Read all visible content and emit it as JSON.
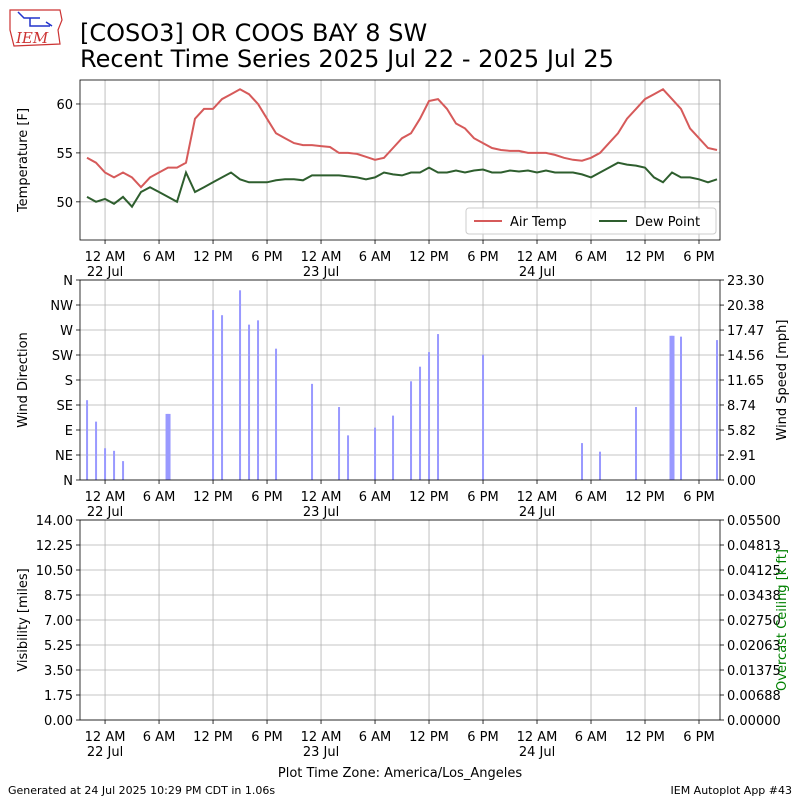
{
  "logo_text": "IEM",
  "header": {
    "title": "[COSO3] OR COOS BAY 8 SW",
    "subtitle": "Recent Time Series 2025 Jul 22 - 2025 Jul 25"
  },
  "footer": {
    "left": "Generated at 24 Jul 2025 10:29 PM CDT in 1.06s",
    "right": "IEM Autoplot App #43"
  },
  "chart_data": [
    {
      "type": "line",
      "ylabel": "Temperature [F]",
      "grid": true,
      "legend": "lower right",
      "xlim": [
        "2025-07-21T21:13",
        "2025-07-24T20:20"
      ],
      "xticks": [
        {
          "value": "2025-07-22T00:00",
          "label": "12 AM\n22 Jul"
        },
        {
          "value": "2025-07-22T06:00",
          "label": "6 AM"
        },
        {
          "value": "2025-07-22T12:00",
          "label": "12 PM"
        },
        {
          "value": "2025-07-22T18:00",
          "label": "6 PM"
        },
        {
          "value": "2025-07-23T00:00",
          "label": "12 AM\n23 Jul"
        },
        {
          "value": "2025-07-23T06:00",
          "label": "6 AM"
        },
        {
          "value": "2025-07-23T12:00",
          "label": "12 PM"
        },
        {
          "value": "2025-07-23T18:00",
          "label": "6 PM"
        },
        {
          "value": "2025-07-24T00:00",
          "label": "12 AM\n24 Jul"
        },
        {
          "value": "2025-07-24T06:00",
          "label": "6 AM"
        },
        {
          "value": "2025-07-24T12:00",
          "label": "12 PM"
        },
        {
          "value": "2025-07-24T18:00",
          "label": "6 PM"
        }
      ],
      "ylim": [
        46.1,
        62.45
      ],
      "yticks": [
        50,
        55,
        60
      ],
      "x": [
        "2025-07-21T22:00",
        "2025-07-21T23:00",
        "2025-07-22T00:00",
        "2025-07-22T01:00",
        "2025-07-22T02:00",
        "2025-07-22T03:00",
        "2025-07-22T04:00",
        "2025-07-22T05:00",
        "2025-07-22T06:00",
        "2025-07-22T07:00",
        "2025-07-22T08:00",
        "2025-07-22T09:00",
        "2025-07-22T10:00",
        "2025-07-22T11:00",
        "2025-07-22T12:00",
        "2025-07-22T13:00",
        "2025-07-22T14:00",
        "2025-07-22T15:00",
        "2025-07-22T16:00",
        "2025-07-22T17:00",
        "2025-07-22T18:00",
        "2025-07-22T19:00",
        "2025-07-22T20:00",
        "2025-07-22T21:00",
        "2025-07-22T22:00",
        "2025-07-22T23:00",
        "2025-07-23T00:00",
        "2025-07-23T01:00",
        "2025-07-23T02:00",
        "2025-07-23T03:00",
        "2025-07-23T04:00",
        "2025-07-23T05:00",
        "2025-07-23T06:00",
        "2025-07-23T07:00",
        "2025-07-23T08:00",
        "2025-07-23T09:00",
        "2025-07-23T10:00",
        "2025-07-23T11:00",
        "2025-07-23T12:00",
        "2025-07-23T13:00",
        "2025-07-23T14:00",
        "2025-07-23T15:00",
        "2025-07-23T16:00",
        "2025-07-23T17:00",
        "2025-07-23T18:00",
        "2025-07-23T19:00",
        "2025-07-23T20:00",
        "2025-07-23T21:00",
        "2025-07-23T22:00",
        "2025-07-23T23:00",
        "2025-07-24T00:00",
        "2025-07-24T01:00",
        "2025-07-24T02:00",
        "2025-07-24T03:00",
        "2025-07-24T04:00",
        "2025-07-24T05:00",
        "2025-07-24T06:00",
        "2025-07-24T07:00",
        "2025-07-24T08:00",
        "2025-07-24T09:00",
        "2025-07-24T10:00",
        "2025-07-24T11:00",
        "2025-07-24T12:00",
        "2025-07-24T13:00",
        "2025-07-24T14:00",
        "2025-07-24T15:00",
        "2025-07-24T16:00",
        "2025-07-24T17:00",
        "2025-07-24T18:00",
        "2025-07-24T19:00",
        "2025-07-24T20:00"
      ],
      "series": [
        {
          "name": "Air Temp",
          "color": "#d65a5a",
          "values": [
            54.5,
            54,
            53,
            52.5,
            53,
            52.5,
            51.5,
            52.5,
            53,
            53.5,
            53.5,
            54,
            58.5,
            59.5,
            59.5,
            60.5,
            61,
            61.5,
            61,
            60,
            58.5,
            57,
            56.5,
            56,
            55.8,
            55.8,
            55.7,
            55.6,
            55,
            55,
            54.9,
            54.6,
            54.3,
            54.5,
            55.5,
            56.5,
            57,
            58.5,
            60.3,
            60.5,
            59.5,
            58,
            57.5,
            56.5,
            56,
            55.5,
            55.3,
            55.2,
            55.2,
            55,
            55,
            55,
            54.8,
            54.5,
            54.3,
            54.2,
            54.5,
            55,
            56,
            57,
            58.5,
            59.5,
            60.5,
            61,
            61.5,
            60.5,
            59.5,
            57.5,
            56.5,
            55.5,
            55.3
          ]
        },
        {
          "name": "Dew Point",
          "color": "#2e5e2e",
          "values": [
            50.5,
            50,
            50.3,
            49.8,
            50.5,
            49.5,
            51,
            51.5,
            51,
            50.5,
            50,
            53,
            51,
            51.5,
            52,
            52.5,
            53,
            52.3,
            52,
            52,
            52,
            52.2,
            52.3,
            52.3,
            52.2,
            52.7,
            52.7,
            52.7,
            52.7,
            52.6,
            52.5,
            52.3,
            52.5,
            53,
            52.8,
            52.7,
            53,
            53,
            53.5,
            53,
            53,
            53.2,
            53,
            53.2,
            53.3,
            53,
            53,
            53.2,
            53.1,
            53.2,
            53,
            53.2,
            53,
            53,
            53,
            52.8,
            52.5,
            53,
            53.5,
            54,
            53.8,
            53.7,
            53.5,
            52.5,
            52,
            53,
            52.5,
            52.5,
            52.3,
            52,
            52.3
          ]
        }
      ]
    },
    {
      "type": "bar",
      "ylabel": "Wind Direction",
      "y2label": "Wind Speed [mph]",
      "grid": true,
      "xlim": [
        "2025-07-21T21:13",
        "2025-07-24T20:20"
      ],
      "xticks": [
        {
          "value": "2025-07-22T00:00",
          "label": "12 AM\n22 Jul"
        },
        {
          "value": "2025-07-22T06:00",
          "label": "6 AM"
        },
        {
          "value": "2025-07-22T12:00",
          "label": "12 PM"
        },
        {
          "value": "2025-07-22T18:00",
          "label": "6 PM"
        },
        {
          "value": "2025-07-23T00:00",
          "label": "12 AM\n23 Jul"
        },
        {
          "value": "2025-07-23T06:00",
          "label": "6 AM"
        },
        {
          "value": "2025-07-23T12:00",
          "label": "12 PM"
        },
        {
          "value": "2025-07-23T18:00",
          "label": "6 PM"
        },
        {
          "value": "2025-07-24T00:00",
          "label": "12 AM\n24 Jul"
        },
        {
          "value": "2025-07-24T06:00",
          "label": "6 AM"
        },
        {
          "value": "2025-07-24T12:00",
          "label": "12 PM"
        },
        {
          "value": "2025-07-24T18:00",
          "label": "6 PM"
        }
      ],
      "ylim": [
        0,
        360
      ],
      "yticks": [
        {
          "value": 0,
          "label": "N"
        },
        {
          "value": 45,
          "label": "NE"
        },
        {
          "value": 90,
          "label": "E"
        },
        {
          "value": 135,
          "label": "SE"
        },
        {
          "value": 180,
          "label": "S"
        },
        {
          "value": 225,
          "label": "SW"
        },
        {
          "value": 270,
          "label": "W"
        },
        {
          "value": 315,
          "label": "NW"
        },
        {
          "value": 360,
          "label": "N"
        }
      ],
      "y2lim": [
        0,
        23.3
      ],
      "y2ticks": [
        {
          "value": 0,
          "label": "0.00"
        },
        {
          "value": 2.91,
          "label": "2.91"
        },
        {
          "value": 5.82,
          "label": "5.82"
        },
        {
          "value": 8.74,
          "label": "8.74"
        },
        {
          "value": 11.65,
          "label": "11.65"
        },
        {
          "value": 14.56,
          "label": "14.56"
        },
        {
          "value": 17.47,
          "label": "17.47"
        },
        {
          "value": 20.38,
          "label": "20.38"
        },
        {
          "value": 23.3,
          "label": "23.30"
        }
      ],
      "x": [
        "2025-07-21T22:00",
        "2025-07-21T23:00",
        "2025-07-22T00:00",
        "2025-07-22T01:00",
        "2025-07-22T02:00",
        "2025-07-22T06:50",
        "2025-07-22T07:00",
        "2025-07-22T07:10",
        "2025-07-22T12:00",
        "2025-07-22T13:00",
        "2025-07-22T15:00",
        "2025-07-22T16:00",
        "2025-07-22T17:00",
        "2025-07-22T19:00",
        "2025-07-22T23:00",
        "2025-07-23T02:00",
        "2025-07-23T03:00",
        "2025-07-23T06:00",
        "2025-07-23T08:00",
        "2025-07-23T10:00",
        "2025-07-23T11:00",
        "2025-07-23T12:00",
        "2025-07-23T13:00",
        "2025-07-23T18:00",
        "2025-07-24T05:00",
        "2025-07-24T07:00",
        "2025-07-24T11:00",
        "2025-07-24T14:50",
        "2025-07-24T15:00",
        "2025-07-24T15:10",
        "2025-07-24T16:00",
        "2025-07-24T20:00"
      ],
      "series": [
        {
          "color": "#9999ff",
          "axis": "y2",
          "values": [
            9.3,
            6.8,
            3.7,
            3.4,
            2.2,
            7.7,
            7.7,
            7.7,
            19.8,
            19.2,
            22.1,
            18.1,
            18.6,
            15.3,
            11.2,
            8.5,
            5.2,
            6.1,
            7.5,
            11.5,
            13.2,
            14.9,
            17.0,
            14.6,
            4.3,
            3.3,
            8.5,
            16.8,
            16.8,
            16.8,
            16.7,
            16.3
          ]
        }
      ]
    },
    {
      "type": "line",
      "ylabel": "Visibility [miles]",
      "y2label": "Overcast Ceiling [k ft]",
      "y2label_color": "#008000",
      "grid": true,
      "xlabel": "Plot Time Zone: America/Los_Angeles",
      "xlim": [
        "2025-07-21T21:13",
        "2025-07-24T20:20"
      ],
      "xticks": [
        {
          "value": "2025-07-22T00:00",
          "label": "12 AM\n22 Jul"
        },
        {
          "value": "2025-07-22T06:00",
          "label": "6 AM"
        },
        {
          "value": "2025-07-22T12:00",
          "label": "12 PM"
        },
        {
          "value": "2025-07-22T18:00",
          "label": "6 PM"
        },
        {
          "value": "2025-07-23T00:00",
          "label": "12 AM\n23 Jul"
        },
        {
          "value": "2025-07-23T06:00",
          "label": "6 AM"
        },
        {
          "value": "2025-07-23T12:00",
          "label": "12 PM"
        },
        {
          "value": "2025-07-23T18:00",
          "label": "6 PM"
        },
        {
          "value": "2025-07-24T00:00",
          "label": "12 AM\n24 Jul"
        },
        {
          "value": "2025-07-24T06:00",
          "label": "6 AM"
        },
        {
          "value": "2025-07-24T12:00",
          "label": "12 PM"
        },
        {
          "value": "2025-07-24T18:00",
          "label": "6 PM"
        }
      ],
      "ylim": [
        0,
        14
      ],
      "yticks": [
        {
          "value": 0,
          "label": "0.00"
        },
        {
          "value": 1.75,
          "label": "1.75"
        },
        {
          "value": 3.5,
          "label": "3.50"
        },
        {
          "value": 5.25,
          "label": "5.25"
        },
        {
          "value": 7,
          "label": "7.00"
        },
        {
          "value": 8.75,
          "label": "8.75"
        },
        {
          "value": 10.5,
          "label": "10.50"
        },
        {
          "value": 12.25,
          "label": "12.25"
        },
        {
          "value": 14,
          "label": "14.00"
        }
      ],
      "y2lim": [
        0,
        0.055
      ],
      "y2ticks": [
        {
          "value": 0,
          "label": "0.00000"
        },
        {
          "value": 0.006875,
          "label": "0.00688"
        },
        {
          "value": 0.01375,
          "label": "0.01375"
        },
        {
          "value": 0.020625,
          "label": "0.02063"
        },
        {
          "value": 0.0275,
          "label": "0.02750"
        },
        {
          "value": 0.034375,
          "label": "0.03438"
        },
        {
          "value": 0.04125,
          "label": "0.04125"
        },
        {
          "value": 0.048125,
          "label": "0.04813"
        },
        {
          "value": 0.055,
          "label": "0.05500"
        }
      ],
      "x": [],
      "series": []
    }
  ]
}
